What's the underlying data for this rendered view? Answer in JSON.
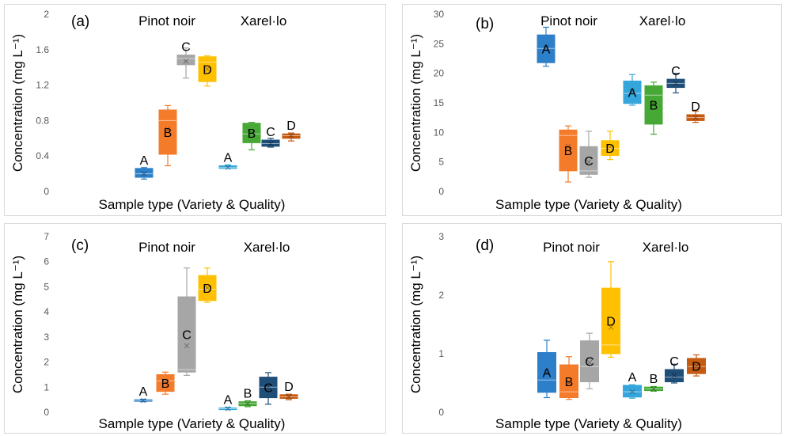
{
  "colors": {
    "A_pinot": "#2e7fc9",
    "A_xarel": "#35a6dc",
    "B_pinot": "#f47b2a",
    "B_xarel": "#46a835",
    "C_pinot": "#a6a6a6",
    "C_xarel": "#1f4e79",
    "D_pinot": "#ffc000",
    "D_xarel": "#c55a11"
  },
  "chart_data": [
    {
      "type": "box",
      "panel_label": "(a)",
      "xlabel": "Sample type (Variety & Quality)",
      "ylabel": "Concentration (mg L⁻¹)",
      "ylim": [
        0,
        2
      ],
      "yticks": [
        "0",
        "0.4",
        "0.8",
        "1.2",
        "1.6",
        "2"
      ],
      "ytick_values": [
        0,
        0.4,
        0.8,
        1.2,
        1.6,
        2
      ],
      "groups": [
        "Pinot noir",
        "Xarel·lo"
      ],
      "boxes": [
        {
          "group": "Pinot noir",
          "quality": "A",
          "min": 0.14,
          "q1": 0.16,
          "median": 0.2,
          "q3": 0.26,
          "max": 0.27,
          "mean": 0.2
        },
        {
          "group": "Pinot noir",
          "quality": "B",
          "min": 0.29,
          "q1": 0.42,
          "median": 0.8,
          "q3": 0.92,
          "max": 0.97,
          "mean": 0.7
        },
        {
          "group": "Pinot noir",
          "quality": "C",
          "min": 1.28,
          "q1": 1.43,
          "median": 1.5,
          "q3": 1.54,
          "max": 1.62,
          "mean": 1.47
        },
        {
          "group": "Pinot noir",
          "quality": "D",
          "min": 1.19,
          "q1": 1.24,
          "median": 1.46,
          "q3": 1.52,
          "max": 1.53,
          "mean": 1.38
        },
        {
          "group": "Xarel·lo",
          "quality": "A",
          "min": 0.26,
          "q1": 0.26,
          "median": 0.27,
          "q3": 0.29,
          "max": 0.3,
          "mean": 0.27
        },
        {
          "group": "Xarel·lo",
          "quality": "B",
          "min": 0.47,
          "q1": 0.55,
          "median": 0.65,
          "q3": 0.77,
          "max": 0.78,
          "mean": 0.66
        },
        {
          "group": "Xarel·lo",
          "quality": "C",
          "min": 0.5,
          "q1": 0.51,
          "median": 0.54,
          "q3": 0.58,
          "max": 0.6,
          "mean": 0.54
        },
        {
          "group": "Xarel·lo",
          "quality": "D",
          "min": 0.57,
          "q1": 0.6,
          "median": 0.63,
          "q3": 0.65,
          "max": 0.66,
          "mean": 0.63
        }
      ]
    },
    {
      "type": "box",
      "panel_label": "(b)",
      "xlabel": "Sample type (Variety & Quality)",
      "ylabel": "Concentration (mg L⁻¹)",
      "ylim": [
        0,
        30
      ],
      "yticks": [
        "0",
        "5",
        "10",
        "15",
        "20",
        "25",
        "30"
      ],
      "ytick_values": [
        0,
        5,
        10,
        15,
        20,
        25,
        30
      ],
      "groups": [
        "Pinot noir",
        "Xarel·lo"
      ],
      "boxes": [
        {
          "group": "Pinot noir",
          "quality": "A",
          "min": 21.2,
          "q1": 21.8,
          "median": 24.2,
          "q3": 26.5,
          "max": 27.8,
          "mean": 24.3
        },
        {
          "group": "Pinot noir",
          "quality": "B",
          "min": 1.6,
          "q1": 3.5,
          "median": 9.5,
          "q3": 10.4,
          "max": 11.1,
          "mean": 7.6
        },
        {
          "group": "Pinot noir",
          "quality": "C",
          "min": 2.4,
          "q1": 2.9,
          "median": 3.5,
          "q3": 7.6,
          "max": 10.2,
          "mean": 5.0
        },
        {
          "group": "Pinot noir",
          "quality": "D",
          "min": 5.4,
          "q1": 6.1,
          "median": 7.3,
          "q3": 8.6,
          "max": 10.2,
          "mean": 7.5
        },
        {
          "group": "Xarel·lo",
          "quality": "A",
          "min": 14.6,
          "q1": 14.9,
          "median": 16.6,
          "q3": 18.7,
          "max": 19.8,
          "mean": 16.9
        },
        {
          "group": "Xarel·lo",
          "quality": "B",
          "min": 9.7,
          "q1": 11.4,
          "median": 16.3,
          "q3": 17.9,
          "max": 18.5,
          "mean": 14.9
        },
        {
          "group": "Xarel·lo",
          "quality": "C",
          "min": 16.7,
          "q1": 17.6,
          "median": 18.3,
          "q3": 19.0,
          "max": 20.0,
          "mean": 18.3
        },
        {
          "group": "Xarel·lo",
          "quality": "D",
          "min": 11.7,
          "q1": 12.0,
          "median": 12.5,
          "q3": 13.0,
          "max": 13.6,
          "mean": 12.5
        }
      ]
    },
    {
      "type": "box",
      "panel_label": "(c)",
      "xlabel": "Sample type (Variety & Quality)",
      "ylabel": "Concentration (mg L⁻¹)",
      "ylim": [
        0,
        7
      ],
      "yticks": [
        "0",
        "1",
        "2",
        "3",
        "4",
        "5",
        "6",
        "7"
      ],
      "ytick_values": [
        0,
        1,
        2,
        3,
        4,
        5,
        6,
        7
      ],
      "groups": [
        "Pinot noir",
        "Xarel·lo"
      ],
      "boxes": [
        {
          "group": "Pinot noir",
          "quality": "A",
          "min": 0.42,
          "q1": 0.44,
          "median": 0.47,
          "q3": 0.5,
          "max": 0.52,
          "mean": 0.47
        },
        {
          "group": "Pinot noir",
          "quality": "B",
          "min": 0.72,
          "q1": 0.83,
          "median": 1.25,
          "q3": 1.5,
          "max": 1.6,
          "mean": 1.2
        },
        {
          "group": "Pinot noir",
          "quality": "C",
          "min": 1.47,
          "q1": 1.6,
          "median": 1.7,
          "q3": 4.6,
          "max": 5.75,
          "mean": 2.65
        },
        {
          "group": "Pinot noir",
          "quality": "D",
          "min": 4.38,
          "q1": 4.45,
          "median": 4.9,
          "q3": 5.45,
          "max": 5.75,
          "mean": 4.95
        },
        {
          "group": "Xarel·lo",
          "quality": "A",
          "min": 0.1,
          "q1": 0.11,
          "median": 0.14,
          "q3": 0.17,
          "max": 0.2,
          "mean": 0.14
        },
        {
          "group": "Xarel·lo",
          "quality": "B",
          "min": 0.22,
          "q1": 0.26,
          "median": 0.35,
          "q3": 0.42,
          "max": 0.46,
          "mean": 0.34
        },
        {
          "group": "Xarel·lo",
          "quality": "C",
          "min": 0.32,
          "q1": 0.58,
          "median": 1.0,
          "q3": 1.4,
          "max": 1.58,
          "mean": 1.0
        },
        {
          "group": "Xarel·lo",
          "quality": "D",
          "min": 0.5,
          "q1": 0.55,
          "median": 0.62,
          "q3": 0.7,
          "max": 0.72,
          "mean": 0.62
        }
      ]
    },
    {
      "type": "box",
      "panel_label": "(d)",
      "xlabel": "Sample type (Variety & Quality)",
      "ylabel": "Concentration (mg L⁻¹)",
      "ylim": [
        0,
        3
      ],
      "yticks": [
        "0",
        "1",
        "2",
        "3"
      ],
      "ytick_values": [
        0,
        1,
        2,
        3
      ],
      "groups": [
        "Pinot noir",
        "Xarel·lo"
      ],
      "boxes": [
        {
          "group": "Pinot noir",
          "quality": "A",
          "min": 0.25,
          "q1": 0.34,
          "median": 0.55,
          "q3": 1.02,
          "max": 1.23,
          "mean": 0.68
        },
        {
          "group": "Pinot noir",
          "quality": "B",
          "min": 0.22,
          "q1": 0.25,
          "median": 0.35,
          "q3": 0.81,
          "max": 0.95,
          "mean": 0.5
        },
        {
          "group": "Pinot noir",
          "quality": "C",
          "min": 0.4,
          "q1": 0.52,
          "median": 0.78,
          "q3": 1.22,
          "max": 1.35,
          "mean": 0.85
        },
        {
          "group": "Pinot noir",
          "quality": "D",
          "min": 0.94,
          "q1": 1.0,
          "median": 1.15,
          "q3": 2.12,
          "max": 2.57,
          "mean": 1.45
        },
        {
          "group": "Xarel·lo",
          "quality": "A",
          "min": 0.24,
          "q1": 0.26,
          "median": 0.35,
          "q3": 0.46,
          "max": 0.47,
          "mean": 0.35
        },
        {
          "group": "Xarel·lo",
          "quality": "B",
          "min": 0.36,
          "q1": 0.37,
          "median": 0.4,
          "q3": 0.43,
          "max": 0.44,
          "mean": 0.4
        },
        {
          "group": "Xarel·lo",
          "quality": "C",
          "min": 0.5,
          "q1": 0.52,
          "median": 0.6,
          "q3": 0.73,
          "max": 0.82,
          "mean": 0.63
        },
        {
          "group": "Xarel·lo",
          "quality": "D",
          "min": 0.62,
          "q1": 0.66,
          "median": 0.78,
          "q3": 0.92,
          "max": 0.98,
          "mean": 0.79
        }
      ]
    }
  ]
}
